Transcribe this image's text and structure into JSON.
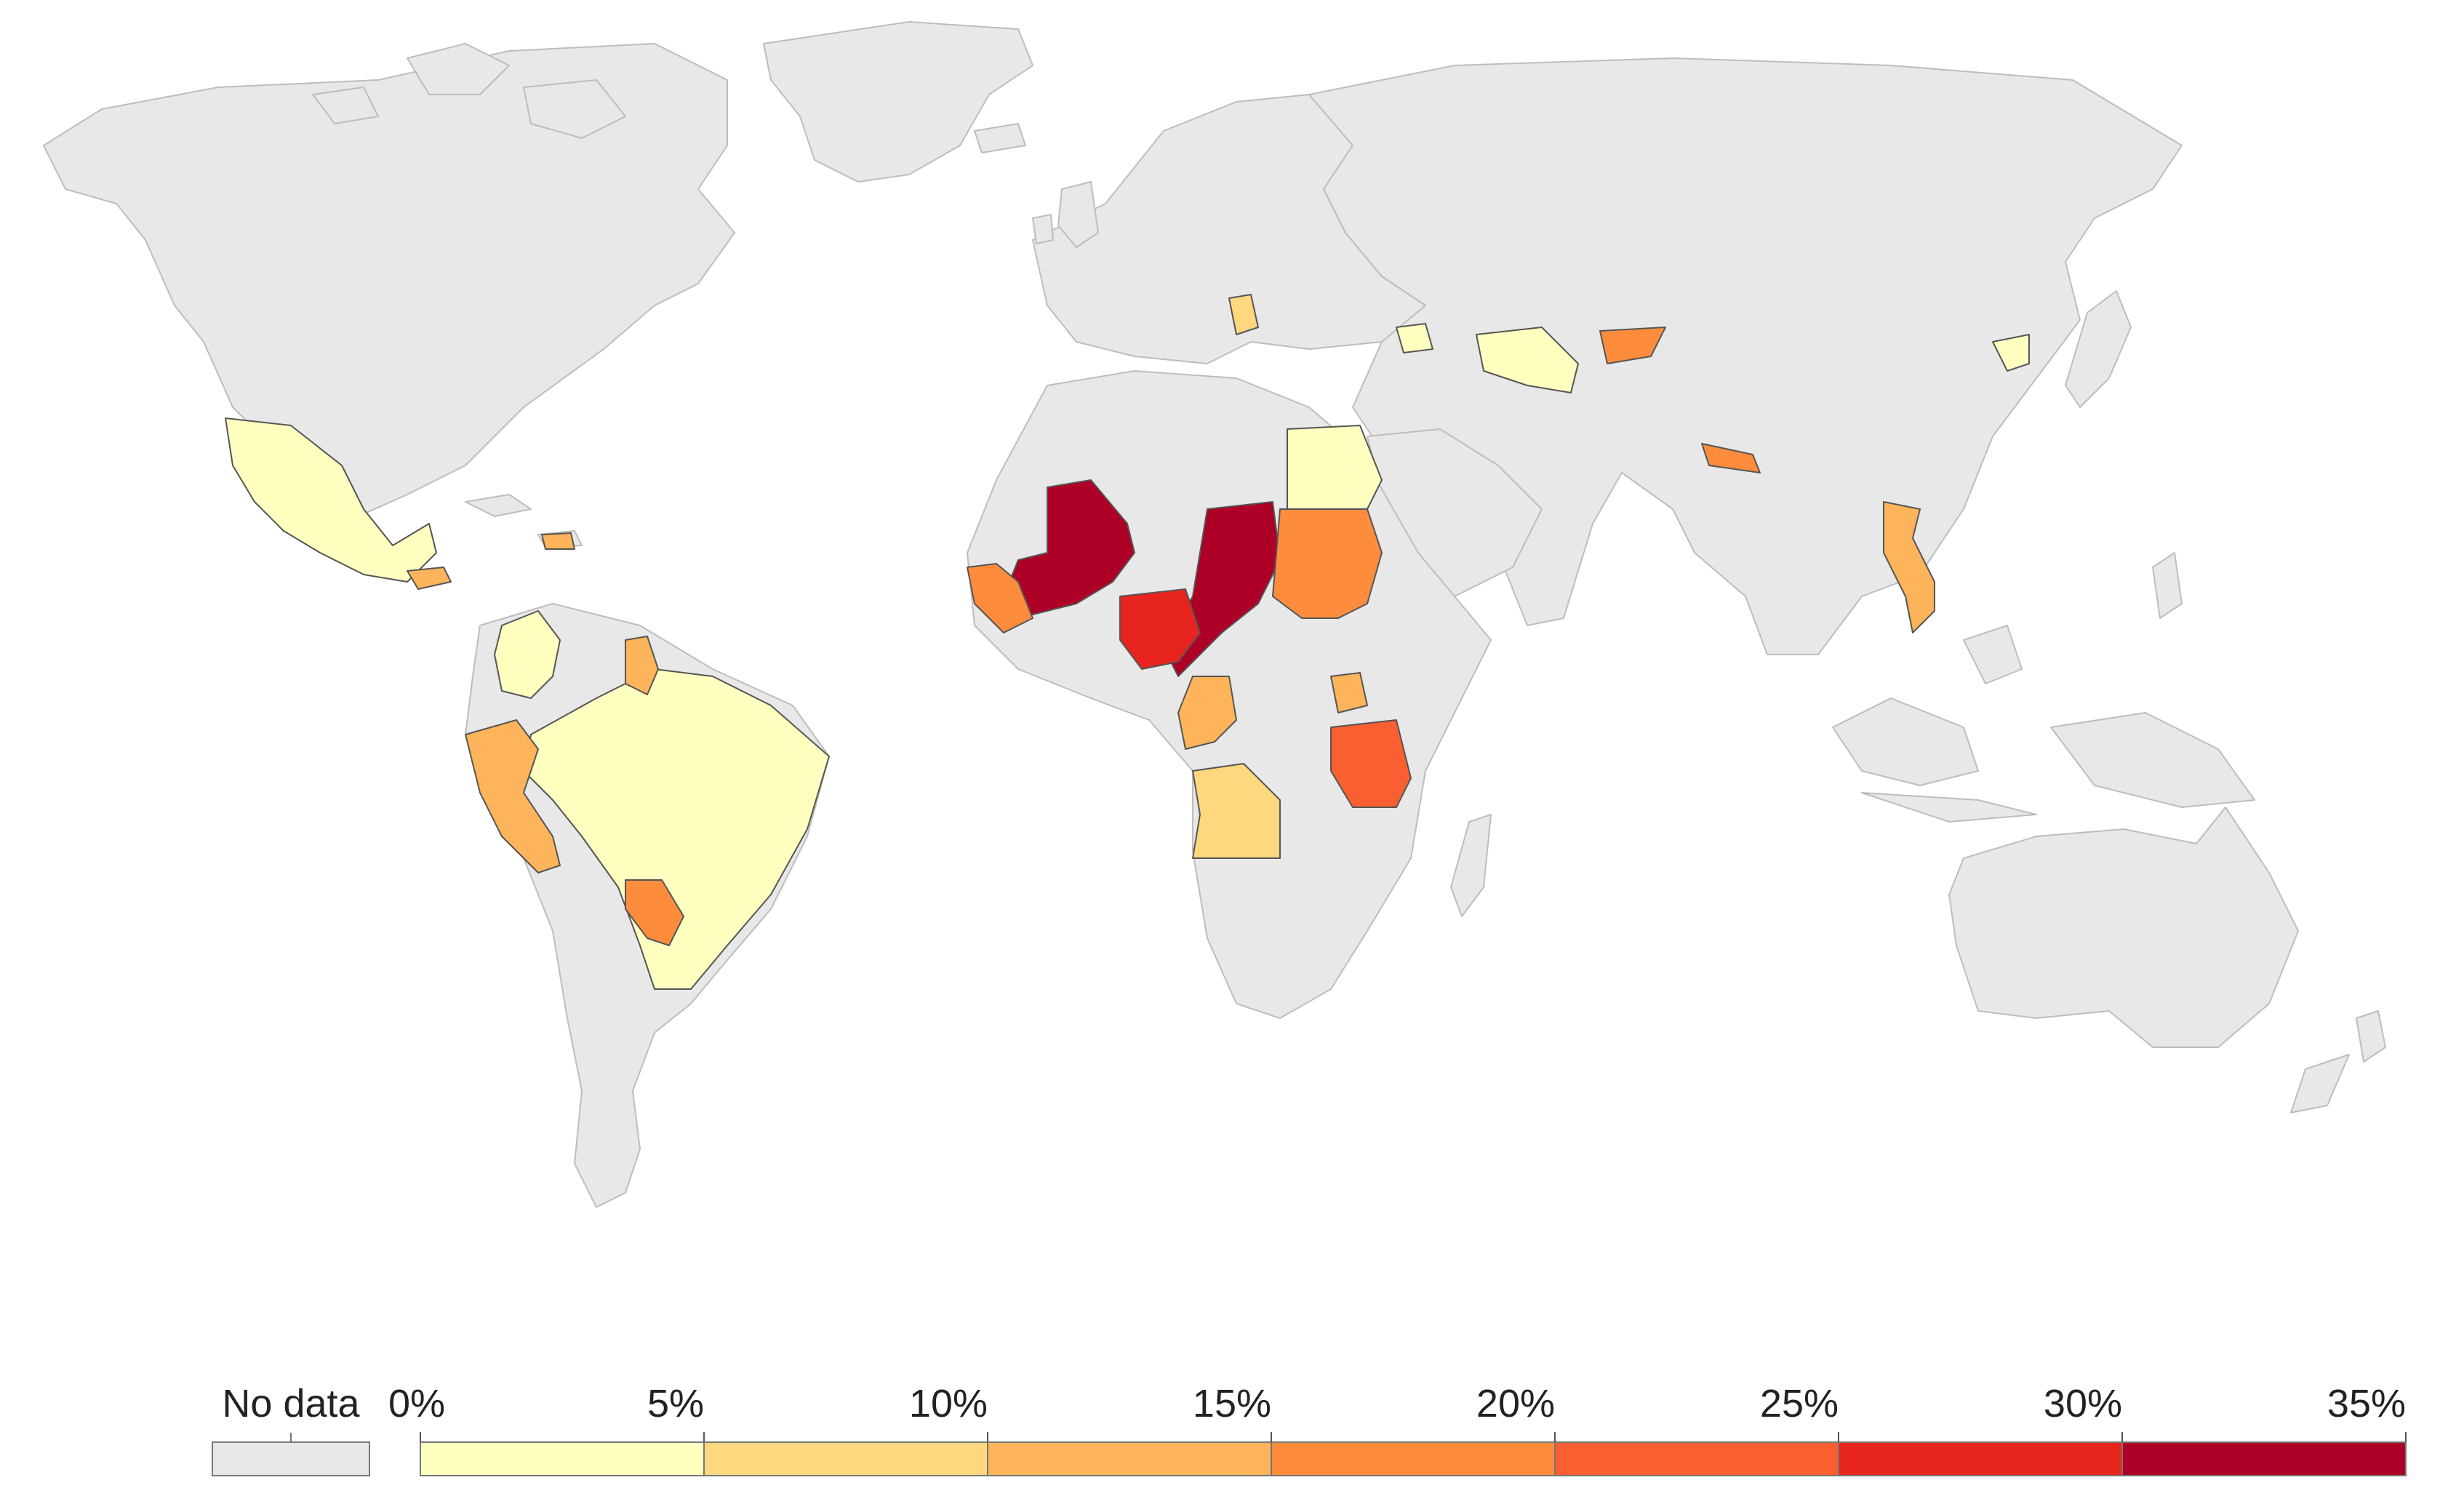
{
  "legend": {
    "no_data_label": "No data",
    "tick_labels": [
      "0%",
      "5%",
      "10%",
      "15%",
      "20%",
      "25%",
      "30%",
      "35%"
    ],
    "scale_min_percent": 0,
    "scale_max_percent": 35,
    "bin_colors": [
      "#ffffbf",
      "#fed77e",
      "#fdb45a",
      "#fd8d3c",
      "#f95f30",
      "#e8241e",
      "#ae0026"
    ],
    "no_data_color": "#e8e8e8"
  },
  "colors": {
    "land": "#e8e8e8",
    "border": "#bdbdbd",
    "water": "#ffffff"
  },
  "regions": [
    {
      "id": "mexico",
      "value": "0-5%"
    },
    {
      "id": "colombia",
      "value": "0-5%"
    },
    {
      "id": "brazil",
      "value": "0-5%"
    },
    {
      "id": "guyana",
      "value": "5-10%"
    },
    {
      "id": "peru",
      "value": "10-15%"
    },
    {
      "id": "paraguay",
      "value": "15-20%"
    },
    {
      "id": "egypt",
      "value": "0-5%"
    },
    {
      "id": "mali",
      "value": "30-35%"
    },
    {
      "id": "chad",
      "value": "30-35%"
    },
    {
      "id": "nigeria",
      "value": "25-30%"
    },
    {
      "id": "sudan",
      "value": "15-20%"
    },
    {
      "id": "guinea",
      "value": "15-20%"
    },
    {
      "id": "drc",
      "value": "10-15%"
    },
    {
      "id": "angola",
      "value": "5-10%"
    },
    {
      "id": "tanzania",
      "value": "20-25%"
    },
    {
      "id": "uganda",
      "value": "10-15%"
    },
    {
      "id": "turkmenistan",
      "value": "0-5%"
    },
    {
      "id": "kyrgyzstan",
      "value": "15-20%"
    },
    {
      "id": "nepal",
      "value": "15-20%"
    },
    {
      "id": "vietnam",
      "value": "10-15%"
    },
    {
      "id": "north-korea",
      "value": "0-5%"
    },
    {
      "id": "serbia",
      "value": "5-10%"
    }
  ]
}
